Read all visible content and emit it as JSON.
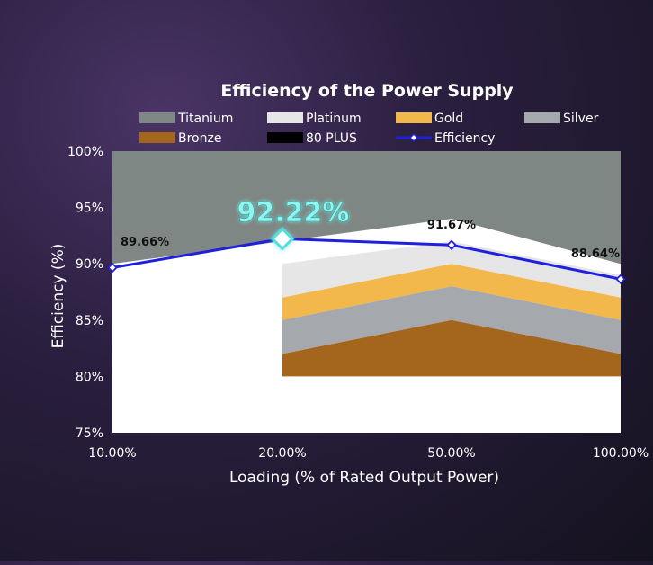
{
  "chart_data": {
    "type": "area",
    "title": "Efficiency of the Power Supply",
    "xlabel": "Loading (% of Rated Output Power)",
    "ylabel": "Efficiency (%)",
    "categories": [
      "10.00%",
      "20.00%",
      "50.00%",
      "100.00%"
    ],
    "yticks": [
      "75%",
      "80%",
      "85%",
      "90%",
      "95%",
      "100%"
    ],
    "ylim": [
      75,
      100
    ],
    "legend": [
      {
        "name": "Titanium",
        "color": "#7f8784"
      },
      {
        "name": "Platinum",
        "color": "#e6e6e6"
      },
      {
        "name": "Gold",
        "color": "#f2b84b"
      },
      {
        "name": "Silver",
        "color": "#a5a8ac"
      },
      {
        "name": "Bronze",
        "color": "#a4651c"
      },
      {
        "name": "80 PLUS",
        "color": "#000000"
      },
      {
        "name": "Efficiency",
        "color": "#1f1fdc"
      }
    ],
    "bands": [
      {
        "name": "Titanium",
        "values": [
          90,
          92,
          94,
          90
        ],
        "color": "#7f8784"
      },
      {
        "name": "Platinum",
        "values": [
          null,
          90,
          92,
          89
        ],
        "color": "#e6e6e6"
      },
      {
        "name": "Gold",
        "values": [
          null,
          87,
          90,
          87
        ],
        "color": "#f2b84b"
      },
      {
        "name": "Silver",
        "values": [
          null,
          85,
          88,
          85
        ],
        "color": "#a5a8ac"
      },
      {
        "name": "Bronze",
        "values": [
          null,
          82,
          85,
          82
        ],
        "color": "#a4651c"
      },
      {
        "name": "80 PLUS",
        "values": [
          null,
          80,
          80,
          80
        ],
        "color": "#000000"
      }
    ],
    "series": [
      {
        "name": "Efficiency",
        "values": [
          89.66,
          92.22,
          91.67,
          88.64
        ],
        "color": "#1f1fdc"
      }
    ],
    "data_labels": [
      "89.66%",
      "92.22%",
      "91.67%",
      "88.64%"
    ]
  }
}
